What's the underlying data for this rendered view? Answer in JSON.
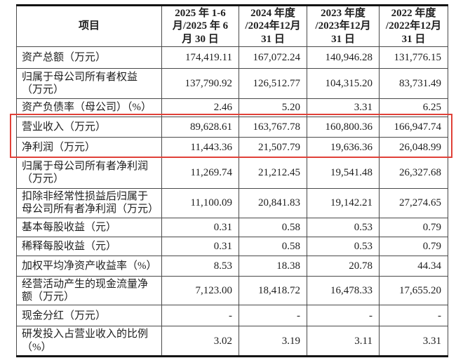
{
  "table": {
    "highlight_color": "#e04138",
    "columns": [
      "项目",
      "2025 年 1-6\n月/2025 年 6\n月 30 日",
      "2024 年度\n/2024年12月\n31 日",
      "2023 年度\n/2023年12月\n31 日",
      "2022 年度\n/2022年12月\n31 日"
    ],
    "rows": [
      {
        "label": "资产总额（万元）",
        "values": [
          "174,419.11",
          "167,072.24",
          "140,946.28",
          "131,776.15"
        ],
        "highlight": false
      },
      {
        "label": "归属于母公司所有者权益（万元）",
        "values": [
          "137,790.92",
          "126,512.77",
          "104,315.20",
          "83,731.49"
        ],
        "highlight": false
      },
      {
        "label": "资产负债率（母公司）（%）",
        "values": [
          "2.46",
          "5.20",
          "3.31",
          "6.25"
        ],
        "highlight": false
      },
      {
        "label": "营业收入（万元）",
        "values": [
          "89,628.61",
          "163,767.78",
          "160,800.36",
          "166,947.74"
        ],
        "highlight": true
      },
      {
        "label": "净利润（万元）",
        "values": [
          "11,443.36",
          "21,507.79",
          "19,636.36",
          "26,048.99"
        ],
        "highlight": true
      },
      {
        "label": "归属于母公司所有者净利润（万元）",
        "values": [
          "11,269.74",
          "21,212.45",
          "19,541.48",
          "26,327.68"
        ],
        "highlight": false
      },
      {
        "label": "扣除非经常性损益后归属于母公司所有者净利润（万元）",
        "values": [
          "11,100.09",
          "20,841.83",
          "19,142.21",
          "27,274.65"
        ],
        "highlight": false
      },
      {
        "label": "基本每股收益（元）",
        "values": [
          "0.31",
          "0.58",
          "0.53",
          "0.79"
        ],
        "highlight": false
      },
      {
        "label": "稀释每股收益（元）",
        "values": [
          "0.31",
          "0.58",
          "0.53",
          "0.79"
        ],
        "highlight": false
      },
      {
        "label": "加权平均净资产收益率（%）",
        "values": [
          "8.53",
          "18.38",
          "20.78",
          "44.34"
        ],
        "highlight": false
      },
      {
        "label": "经营活动产生的现金流量净额（万元）",
        "values": [
          "7,123.00",
          "18,418.72",
          "16,478.33",
          "17,655.20"
        ],
        "highlight": false
      },
      {
        "label": "现金分红（万元）",
        "values": [
          "-",
          "-",
          "-",
          "-"
        ],
        "highlight": false
      },
      {
        "label": "研发投入占营业收入的比例（%）",
        "values": [
          "3.02",
          "3.19",
          "3.11",
          "3.31"
        ],
        "highlight": false
      }
    ]
  }
}
